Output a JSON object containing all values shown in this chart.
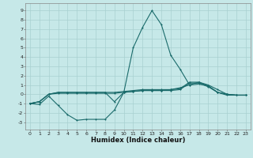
{
  "title": "",
  "xlabel": "Humidex (Indice chaleur)",
  "bg_color": "#c6e8e8",
  "line_color": "#1a6b6b",
  "grid_color": "#a8d0d0",
  "xlim": [
    -0.5,
    23.5
  ],
  "ylim": [
    -3.8,
    9.8
  ],
  "xticks": [
    0,
    1,
    2,
    3,
    4,
    5,
    6,
    7,
    8,
    9,
    10,
    11,
    12,
    13,
    14,
    15,
    16,
    17,
    18,
    19,
    20,
    21,
    22,
    23
  ],
  "yticks": [
    -3,
    -2,
    -1,
    0,
    1,
    2,
    3,
    4,
    5,
    6,
    7,
    8,
    9
  ],
  "line1_x": [
    0,
    1,
    2,
    3,
    4,
    5,
    6,
    7,
    8,
    9,
    10,
    11,
    12,
    13,
    14,
    15,
    16,
    17,
    18,
    19,
    20,
    21,
    22,
    23
  ],
  "line1_y": [
    -1,
    -1.1,
    -0.2,
    -1.2,
    -2.2,
    -2.8,
    -2.7,
    -2.7,
    -2.7,
    -1.7,
    0.2,
    0.3,
    0.4,
    0.4,
    0.4,
    0.5,
    0.7,
    1.0,
    1.1,
    0.9,
    0.2,
    0.0,
    -0.1,
    -0.1
  ],
  "line2_x": [
    0,
    1,
    2,
    3,
    4,
    5,
    6,
    7,
    8,
    9,
    10,
    11,
    12,
    13,
    14,
    15,
    16,
    17,
    18,
    19,
    20,
    21,
    22,
    23
  ],
  "line2_y": [
    -1,
    -0.8,
    0.0,
    0.1,
    0.1,
    0.1,
    0.1,
    0.1,
    0.1,
    0.1,
    0.2,
    0.3,
    0.4,
    0.4,
    0.4,
    0.4,
    0.5,
    1.2,
    1.2,
    0.8,
    0.2,
    0.0,
    -0.1,
    -0.1
  ],
  "line3_x": [
    0,
    1,
    2,
    3,
    4,
    5,
    6,
    7,
    8,
    9,
    10,
    11,
    12,
    13,
    14,
    15,
    16,
    17,
    18,
    19,
    20,
    21,
    22,
    23
  ],
  "line3_y": [
    -1,
    -0.8,
    0.0,
    0.2,
    0.2,
    0.2,
    0.2,
    0.2,
    0.2,
    0.2,
    0.3,
    0.4,
    0.5,
    0.5,
    0.5,
    0.5,
    0.6,
    1.3,
    1.3,
    0.9,
    0.2,
    -0.1,
    -0.1,
    -0.1
  ],
  "line4_x": [
    0,
    1,
    2,
    3,
    4,
    5,
    6,
    7,
    8,
    9,
    10,
    11,
    12,
    13,
    14,
    15,
    16,
    17,
    18,
    19,
    20,
    21,
    22,
    23
  ],
  "line4_y": [
    -1,
    -0.8,
    0.0,
    0.2,
    0.2,
    0.2,
    0.2,
    0.2,
    0.2,
    -0.8,
    0.2,
    5.0,
    7.2,
    9.0,
    7.5,
    4.2,
    2.7,
    1.0,
    1.3,
    1.0,
    0.5,
    0.0,
    -0.1,
    -0.1
  ]
}
